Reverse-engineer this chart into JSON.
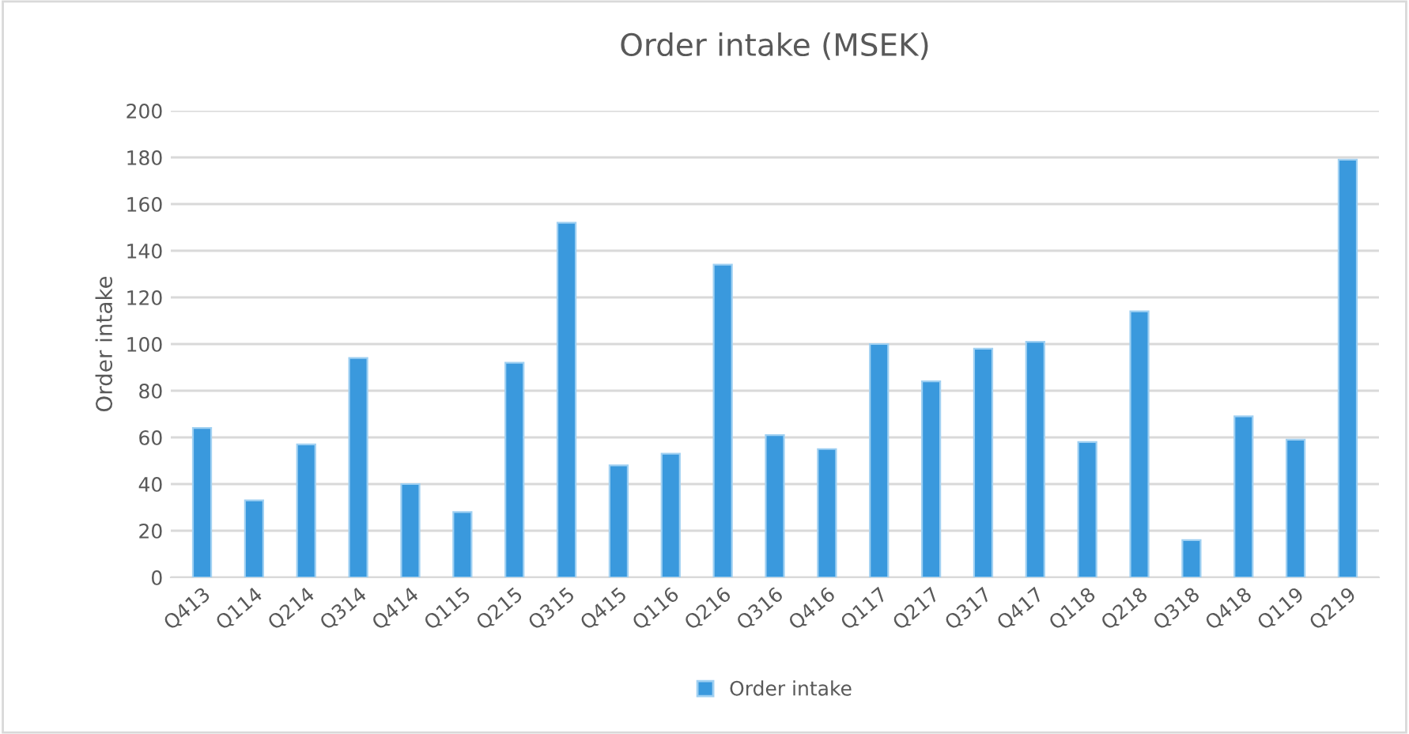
{
  "chart_data": {
    "type": "bar",
    "title": "Order intake (MSEK)",
    "ylabel": "Order intake",
    "categories": [
      "Q413",
      "Q114",
      "Q214",
      "Q314",
      "Q414",
      "Q115",
      "Q215",
      "Q315",
      "Q415",
      "Q116",
      "Q216",
      "Q316",
      "Q416",
      "Q117",
      "Q217",
      "Q317",
      "Q417",
      "Q118",
      "Q218",
      "Q318",
      "Q418",
      "Q119",
      "Q219"
    ],
    "series": [
      {
        "name": "Order intake",
        "color": "#3a99dd",
        "values": [
          64,
          33,
          57,
          94,
          40,
          28,
          92,
          152,
          48,
          53,
          134,
          61,
          55,
          100,
          84,
          98,
          101,
          58,
          114,
          16,
          69,
          59,
          179
        ]
      }
    ],
    "ylim": [
      0,
      200
    ],
    "yticks": [
      0,
      20,
      40,
      60,
      80,
      100,
      120,
      140,
      160,
      180,
      200
    ],
    "grid": "y",
    "legend": "bottom"
  }
}
